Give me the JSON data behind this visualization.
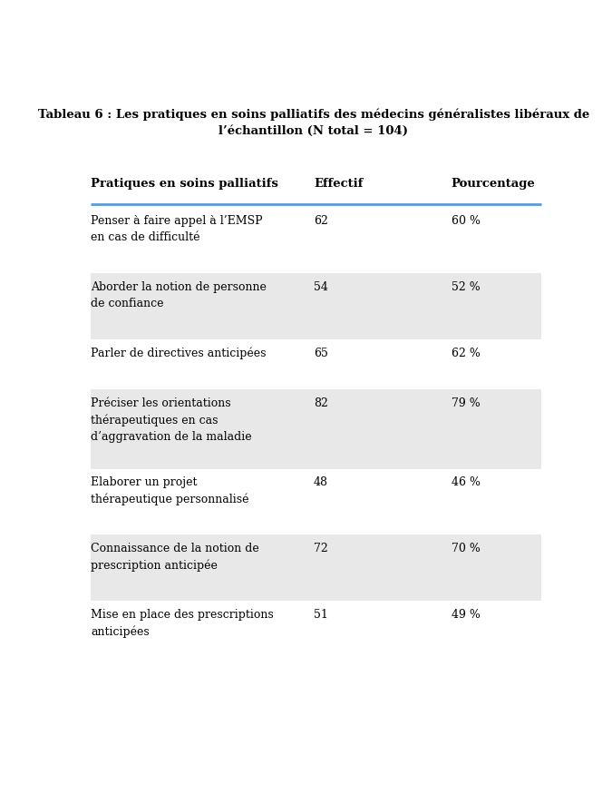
{
  "title_line1": "Tableau 6 : Les pratiques en soins palliatifs des médecins généralistes libéraux de",
  "title_line2": "l’échantillon (N total = 104)",
  "col_headers": [
    "Pratiques en soins palliatifs",
    "Effectif",
    "Pourcentage"
  ],
  "rows": [
    {
      "label": "Penser à faire appel à l’EMSP\nen cas de difficulté",
      "effectif": "62",
      "pourcentage": "60 %",
      "shaded": false
    },
    {
      "label": "Aborder la notion de personne\nde confiance",
      "effectif": "54",
      "pourcentage": "52 %",
      "shaded": true
    },
    {
      "label": "Parler de directives anticipées",
      "effectif": "65",
      "pourcentage": "62 %",
      "shaded": false
    },
    {
      "label": "Préciser les orientations\nthérapeutiques en cas\nd’aggravation de la maladie",
      "effectif": "82",
      "pourcentage": "79 %",
      "shaded": true
    },
    {
      "label": "Elaborer un projet\nthérapeutique personnalisé",
      "effectif": "48",
      "pourcentage": "46 %",
      "shaded": false
    },
    {
      "label": "Connaissance de la notion de\nprescription anticipée",
      "effectif": "72",
      "pourcentage": "70 %",
      "shaded": true
    },
    {
      "label": "Mise en place des prescriptions\nanticipées",
      "effectif": "51",
      "pourcentage": "49 %",
      "shaded": false
    }
  ],
  "shaded_color": "#e8e8e8",
  "white_color": "#ffffff",
  "header_line_color": "#5b9bd5",
  "text_color": "#000000",
  "fig_width": 6.75,
  "fig_height": 8.75,
  "dpi": 100
}
